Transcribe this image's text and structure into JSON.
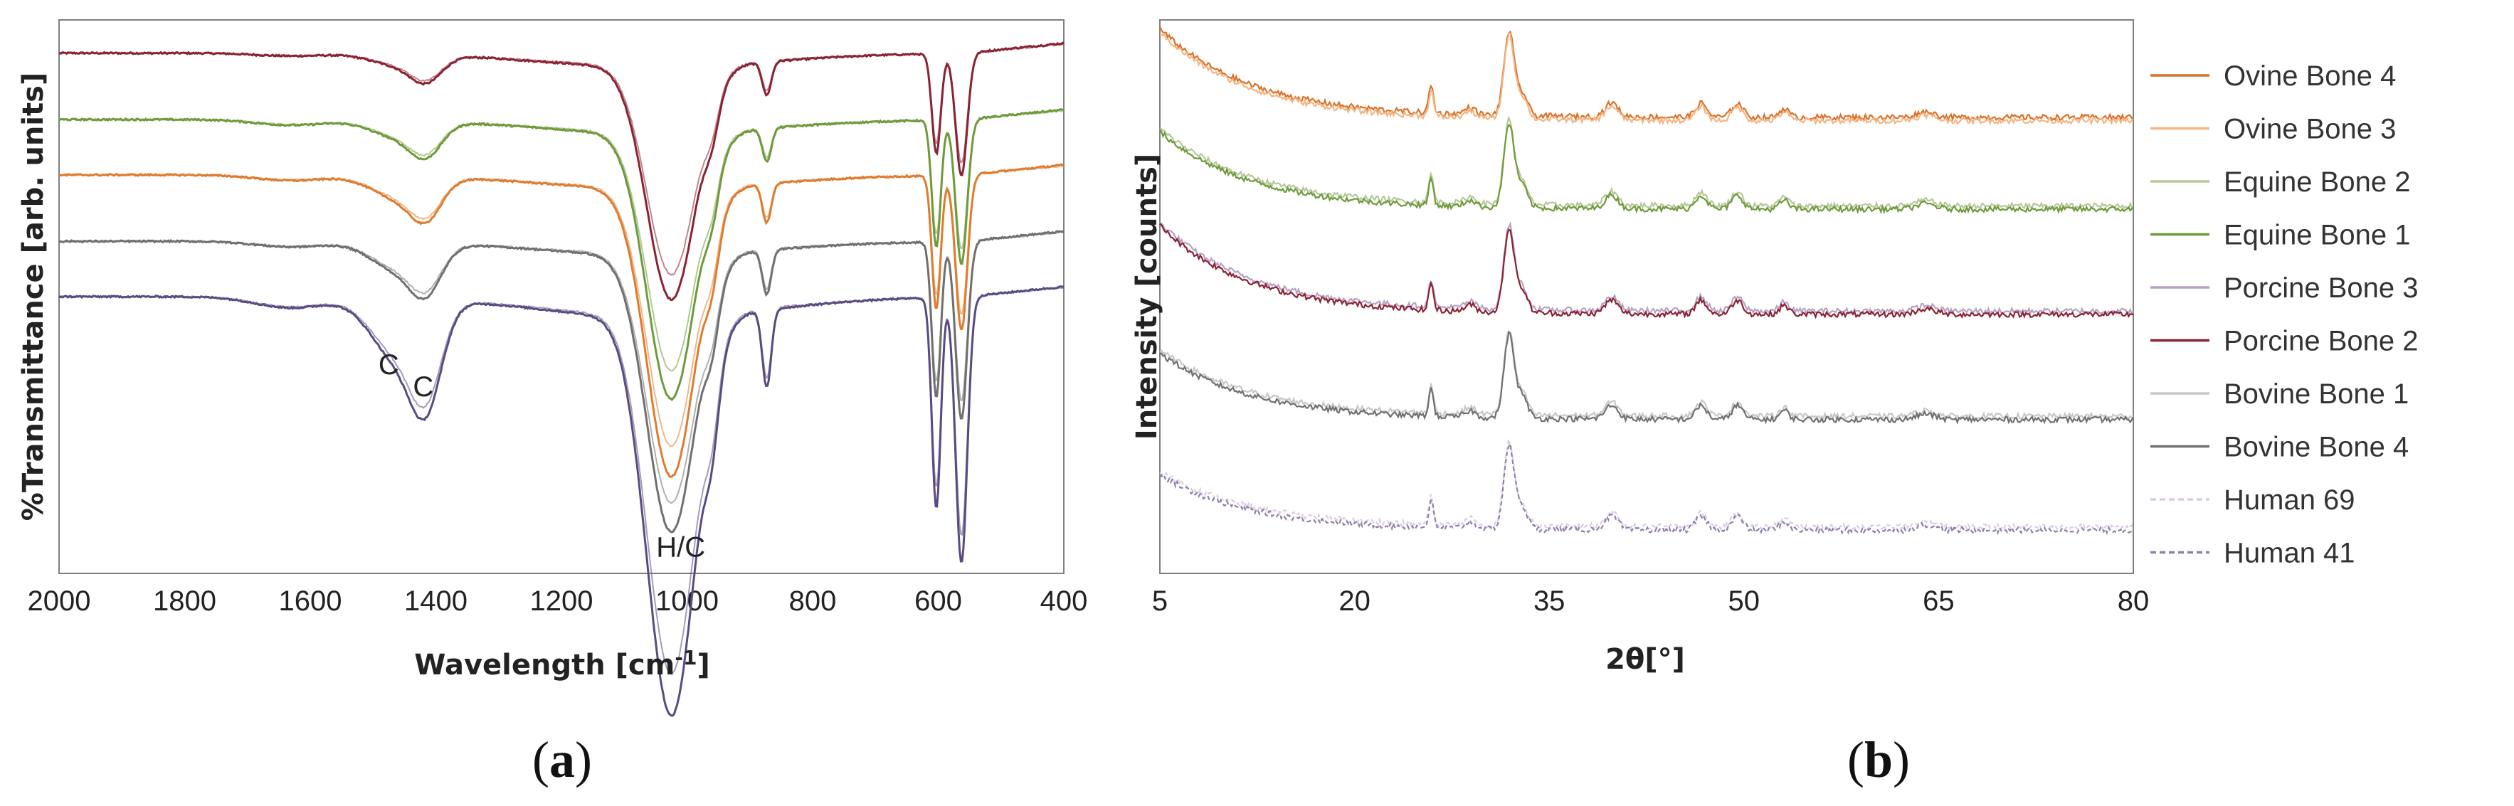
{
  "chart_data": [
    {
      "id": "a",
      "type": "line",
      "panel_label_open": "(",
      "panel_label_letter": "a",
      "panel_label_close": ")",
      "xlabel_main": "Wavelength [cm",
      "xlabel_sup": "-1",
      "xlabel_end": "]",
      "ylabel": "%Transmittance [arb. units]",
      "xlim": [
        2000,
        400
      ],
      "x_reversed": true,
      "ylim": [
        0,
        100
      ],
      "xticks": [
        2000,
        1800,
        1600,
        1400,
        1200,
        1000,
        800,
        600,
        400
      ],
      "annotations": [
        {
          "text": "C",
          "x": 1475,
          "y": 36
        },
        {
          "text": "C",
          "x": 1420,
          "y": 32
        },
        {
          "text": "H/C",
          "x": 1010,
          "y": 3
        }
      ],
      "colors": [
        "#8b2232",
        "#6f9a3c",
        "#e07b2e",
        "#707070",
        "#5a4a82"
      ],
      "baselines": [
        94,
        82,
        72,
        60,
        50
      ],
      "bands": [
        {
          "center": 1460,
          "width": 60,
          "depths": [
            2,
            3,
            4,
            5,
            11
          ]
        },
        {
          "center": 1415,
          "width": 35,
          "depths": [
            4,
            5,
            6,
            7,
            15
          ]
        },
        {
          "center": 1630,
          "width": 80,
          "depths": [
            0.5,
            1,
            1,
            1,
            2
          ]
        },
        {
          "center": 1025,
          "width": 55,
          "depths": [
            42,
            48,
            52,
            50,
            72
          ]
        },
        {
          "center": 960,
          "width": 16,
          "depths": [
            5,
            6,
            7,
            7,
            10
          ]
        },
        {
          "center": 873,
          "width": 10,
          "depths": [
            6,
            6,
            7,
            8,
            14
          ]
        },
        {
          "center": 603,
          "width": 10,
          "depths": [
            18,
            23,
            24,
            28,
            38
          ]
        },
        {
          "center": 563,
          "width": 13,
          "depths": [
            22,
            26,
            28,
            32,
            48
          ]
        }
      ],
      "series": [
        {
          "name": "Porcine Bone 2",
          "color": "#8b2232"
        },
        {
          "name": "Equine Bone 1",
          "color": "#6f9a3c"
        },
        {
          "name": "Ovine Bone 4",
          "color": "#e07b2e"
        },
        {
          "name": "Bovine Bone 4",
          "color": "#707070"
        },
        {
          "name": "Human 41",
          "color": "#5a4a82"
        }
      ]
    },
    {
      "id": "b",
      "type": "line",
      "panel_label_open": "(",
      "panel_label_letter": "b",
      "panel_label_close": ")",
      "xlabel": "2θ[°]",
      "ylabel": "Intensity [counts]",
      "xlim": [
        5,
        80
      ],
      "ylim": [
        0,
        100
      ],
      "xticks": [
        5,
        20,
        35,
        50,
        65,
        80
      ],
      "baselines": [
        82,
        66,
        47,
        28,
        8
      ],
      "bg_amp": [
        16,
        14,
        16,
        12,
        10
      ],
      "peaks": [
        {
          "center": 25.9,
          "width": 0.25,
          "height": 5
        },
        {
          "center": 28.9,
          "width": 0.6,
          "height": 1.2
        },
        {
          "center": 31.9,
          "width": 0.55,
          "height": 15
        },
        {
          "center": 32.9,
          "width": 0.6,
          "height": 4
        },
        {
          "center": 39.8,
          "width": 0.7,
          "height": 2.5
        },
        {
          "center": 46.7,
          "width": 0.6,
          "height": 2.5
        },
        {
          "center": 49.5,
          "width": 0.6,
          "height": 2.5
        },
        {
          "center": 53.1,
          "width": 0.5,
          "height": 1.6
        },
        {
          "center": 64.0,
          "width": 1.0,
          "height": 1.0
        }
      ],
      "groups": [
        [
          "Ovine Bone 4",
          "Ovine Bone 3"
        ],
        [
          "Equine Bone 2",
          "Equine Bone 1"
        ],
        [
          "Porcine Bone 3",
          "Porcine Bone 2"
        ],
        [
          "Bovine Bone 1",
          "Bovine Bone 4"
        ],
        [
          "Human 69",
          "Human 41"
        ]
      ],
      "legend": [
        {
          "name": "Ovine Bone 4",
          "color": "#d9712a",
          "dash": false
        },
        {
          "name": "Ovine Bone 3",
          "color": "#f5b583",
          "dash": false
        },
        {
          "name": "Equine Bone 2",
          "color": "#b5c99a",
          "dash": false
        },
        {
          "name": "Equine Bone 1",
          "color": "#6f9a3c",
          "dash": false
        },
        {
          "name": "Porcine Bone 3",
          "color": "#b7a2c4",
          "dash": false
        },
        {
          "name": "Porcine Bone 2",
          "color": "#8b2232",
          "dash": false
        },
        {
          "name": "Bovine Bone 1",
          "color": "#c8c8c8",
          "dash": false
        },
        {
          "name": "Bovine Bone 4",
          "color": "#707070",
          "dash": false
        },
        {
          "name": "Human 69",
          "color": "#dccbe6",
          "dash": true
        },
        {
          "name": "Human 41",
          "color": "#8f80a8",
          "dash": true
        }
      ]
    }
  ]
}
